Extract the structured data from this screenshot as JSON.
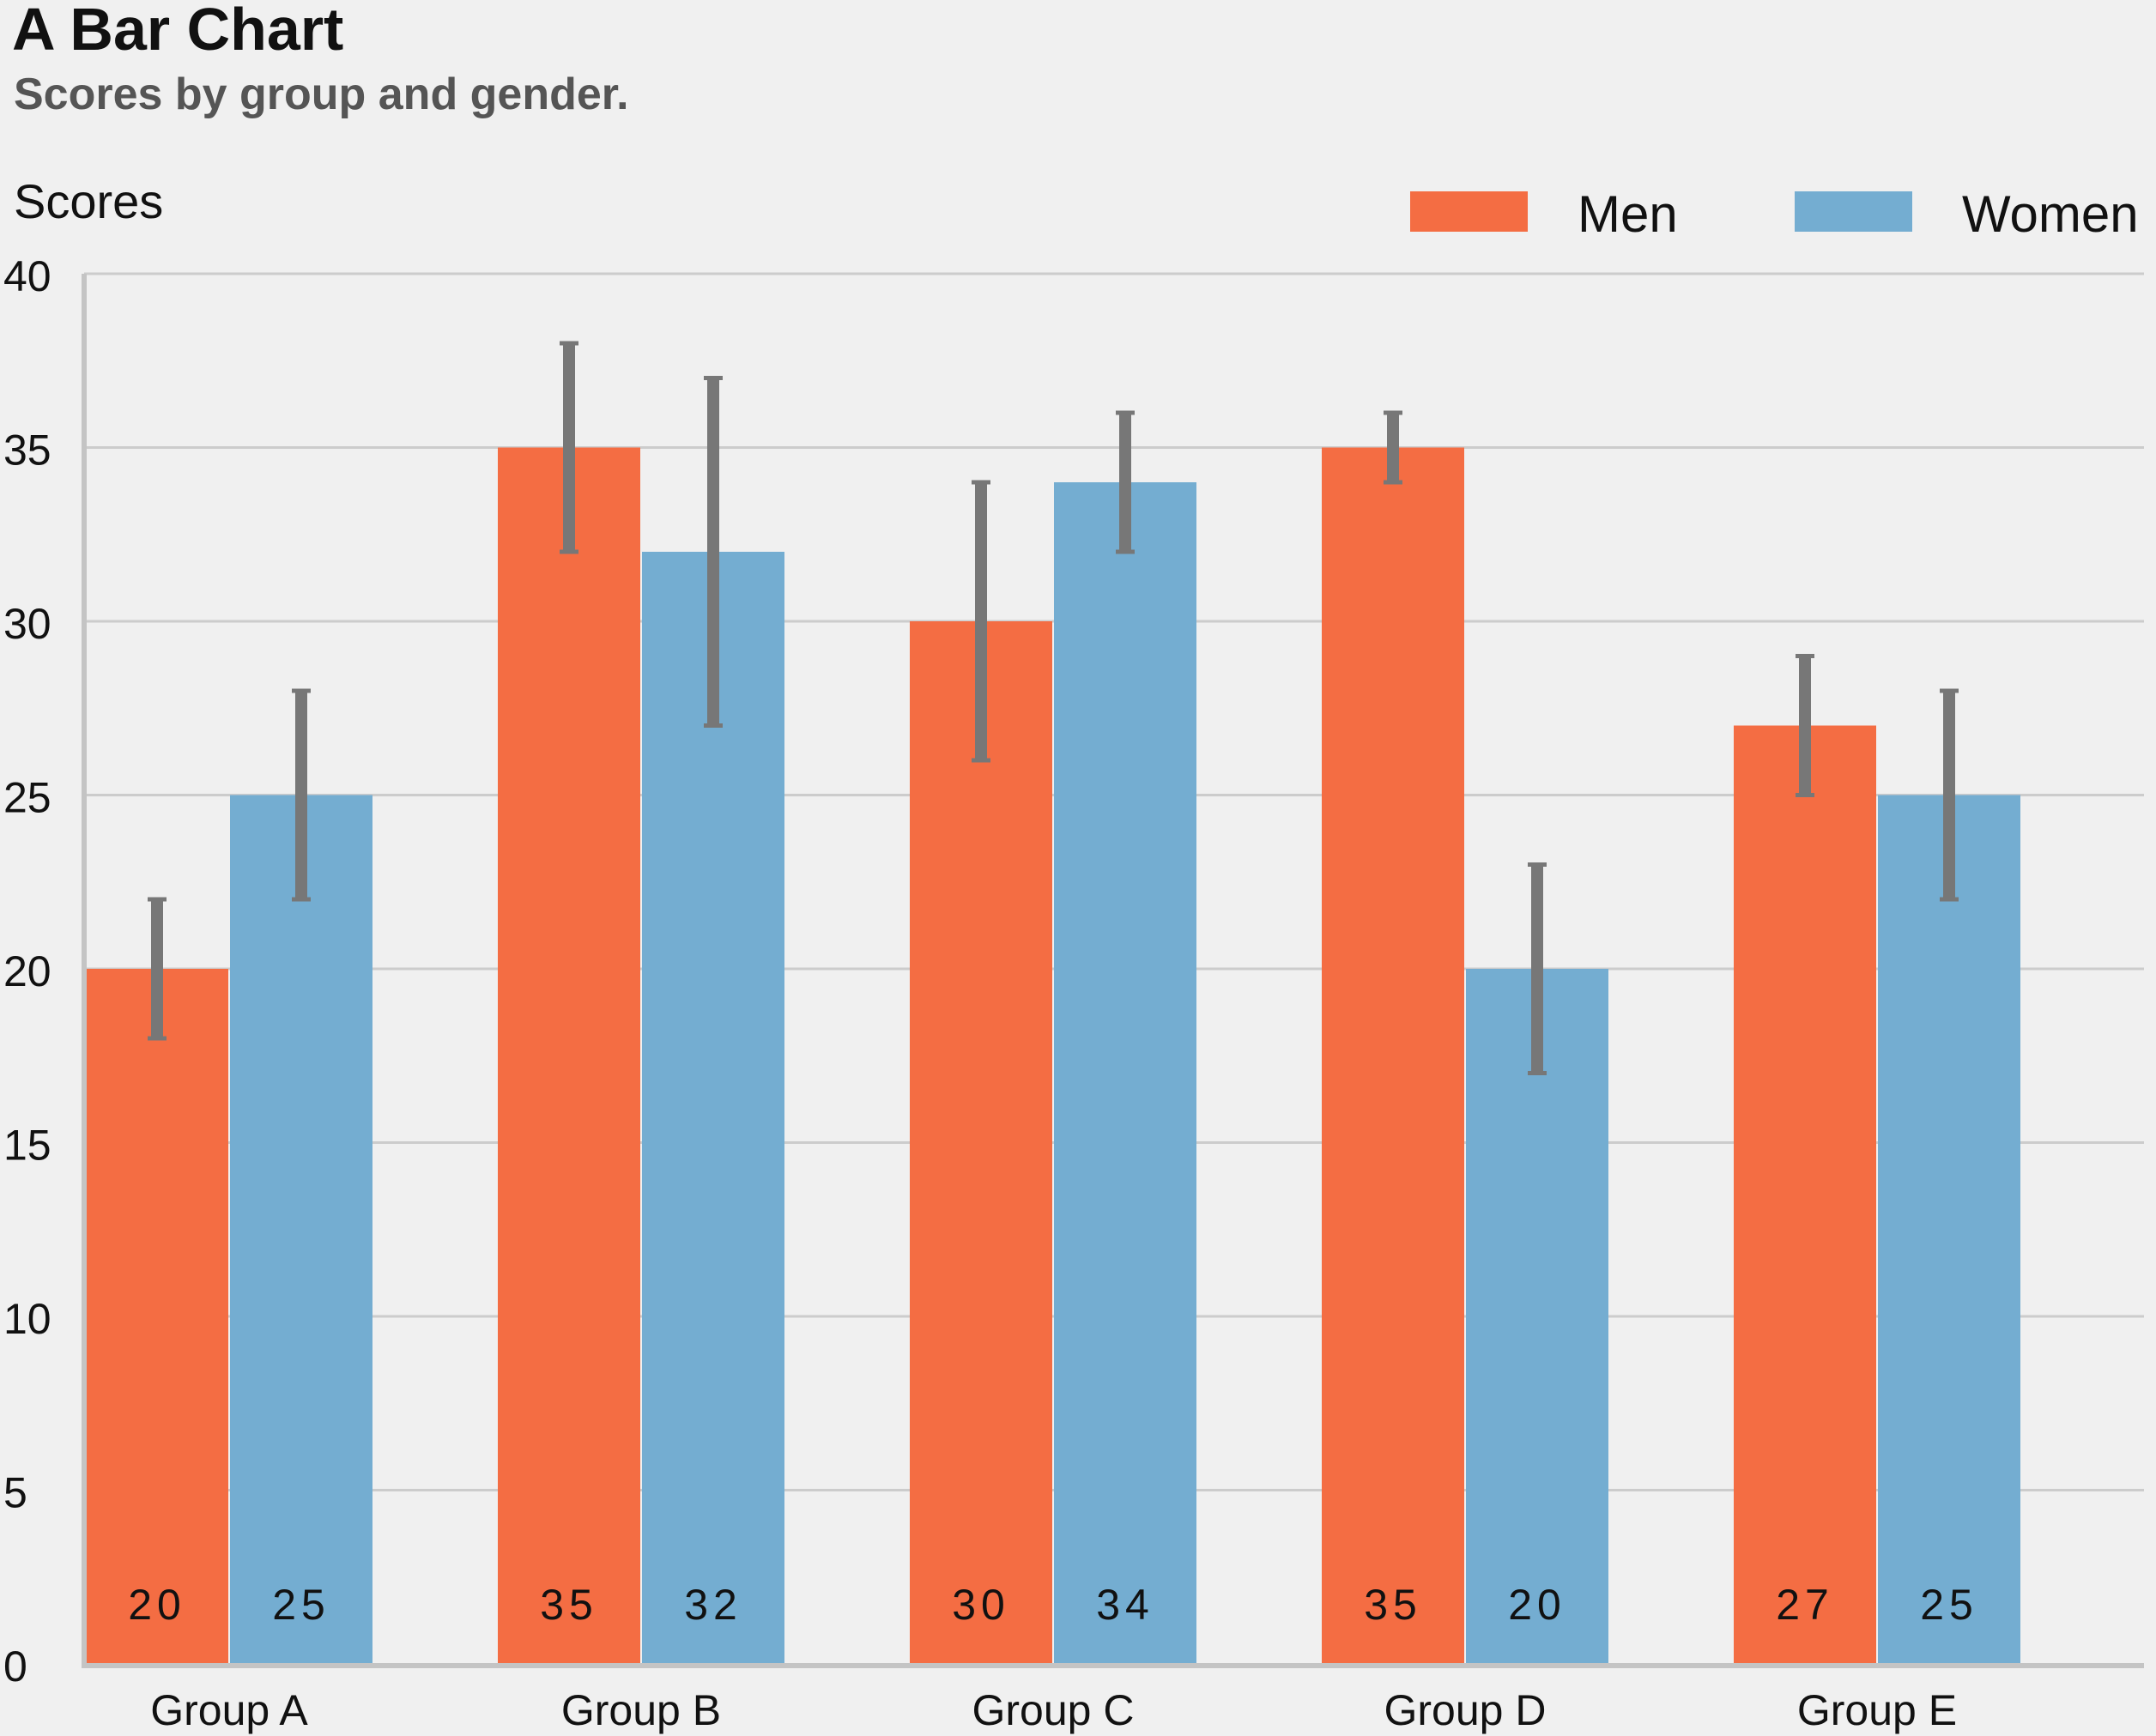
{
  "chart_data": {
    "type": "bar",
    "title": "A Bar Chart",
    "subtitle": "Scores by group and gender.",
    "ylabel": "Scores",
    "xlabel": "",
    "categories": [
      "Group A",
      "Group B",
      "Group C",
      "Group D",
      "Group E"
    ],
    "series": [
      {
        "name": "Men",
        "color": "#f46d43",
        "values": [
          20,
          35,
          30,
          35,
          27
        ],
        "error_low": [
          18,
          32,
          26,
          34,
          25
        ],
        "error_high": [
          22,
          38,
          34,
          36,
          29
        ],
        "labels": [
          "20",
          "35",
          "30",
          "35",
          "27"
        ]
      },
      {
        "name": "Women",
        "color": "#74add1",
        "values": [
          25,
          32,
          34,
          20,
          25
        ],
        "error_low": [
          22,
          27,
          32,
          17,
          22
        ],
        "error_high": [
          28,
          37,
          36,
          23,
          28
        ],
        "labels": [
          "25",
          "32",
          "34",
          "20",
          "25"
        ]
      }
    ],
    "ylim": [
      0,
      40
    ],
    "yticks": [
      "0",
      "5",
      "10",
      "15",
      "20",
      "25",
      "30",
      "35",
      "40"
    ],
    "grid": true,
    "legend_position": "top-right",
    "errorbar_color": "#777777"
  }
}
